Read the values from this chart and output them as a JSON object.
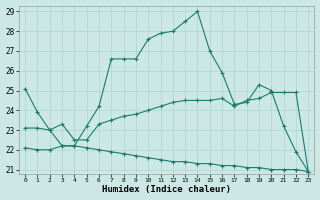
{
  "xlabel": "Humidex (Indice chaleur)",
  "background_color": "#cce8e4",
  "line_color": "#1a7a6e",
  "grid_color": "#b0d4d0",
  "xlim": [
    -0.5,
    23.5
  ],
  "ylim": [
    20.8,
    29.3
  ],
  "yticks": [
    21,
    22,
    23,
    24,
    25,
    26,
    27,
    28,
    29
  ],
  "xticks": [
    0,
    1,
    2,
    3,
    4,
    5,
    6,
    7,
    8,
    9,
    10,
    11,
    12,
    13,
    14,
    15,
    16,
    17,
    18,
    19,
    20,
    21,
    22,
    23
  ],
  "series1_x": [
    0,
    1,
    2,
    3,
    4,
    5,
    6,
    7,
    8,
    9,
    10,
    11,
    12,
    13,
    14,
    15,
    16,
    17,
    18,
    19,
    20,
    21,
    22,
    23
  ],
  "series1_y": [
    25.1,
    23.9,
    23.0,
    22.2,
    22.2,
    23.2,
    24.2,
    26.6,
    26.6,
    26.6,
    27.6,
    27.9,
    28.0,
    28.5,
    29.0,
    27.0,
    25.9,
    24.3,
    24.4,
    25.3,
    25.0,
    23.2,
    21.9,
    20.9
  ],
  "series2_x": [
    0,
    1,
    2,
    3,
    4,
    5,
    6,
    7,
    8,
    9,
    10,
    11,
    12,
    13,
    14,
    15,
    16,
    17,
    18,
    19,
    20,
    21,
    22,
    23
  ],
  "series2_y": [
    23.1,
    23.1,
    23.0,
    23.3,
    22.5,
    22.5,
    23.3,
    23.5,
    23.7,
    23.8,
    24.0,
    24.2,
    24.4,
    24.5,
    24.5,
    24.5,
    24.6,
    24.2,
    24.5,
    24.6,
    24.9,
    24.9,
    24.9,
    20.9
  ],
  "series3_x": [
    0,
    1,
    2,
    3,
    4,
    5,
    6,
    7,
    8,
    9,
    10,
    11,
    12,
    13,
    14,
    15,
    16,
    17,
    18,
    19,
    20,
    21,
    22,
    23
  ],
  "series3_y": [
    22.1,
    22.0,
    22.0,
    22.2,
    22.2,
    22.1,
    22.0,
    21.9,
    21.8,
    21.7,
    21.6,
    21.5,
    21.4,
    21.4,
    21.3,
    21.3,
    21.2,
    21.2,
    21.1,
    21.1,
    21.0,
    21.0,
    21.0,
    20.9
  ]
}
